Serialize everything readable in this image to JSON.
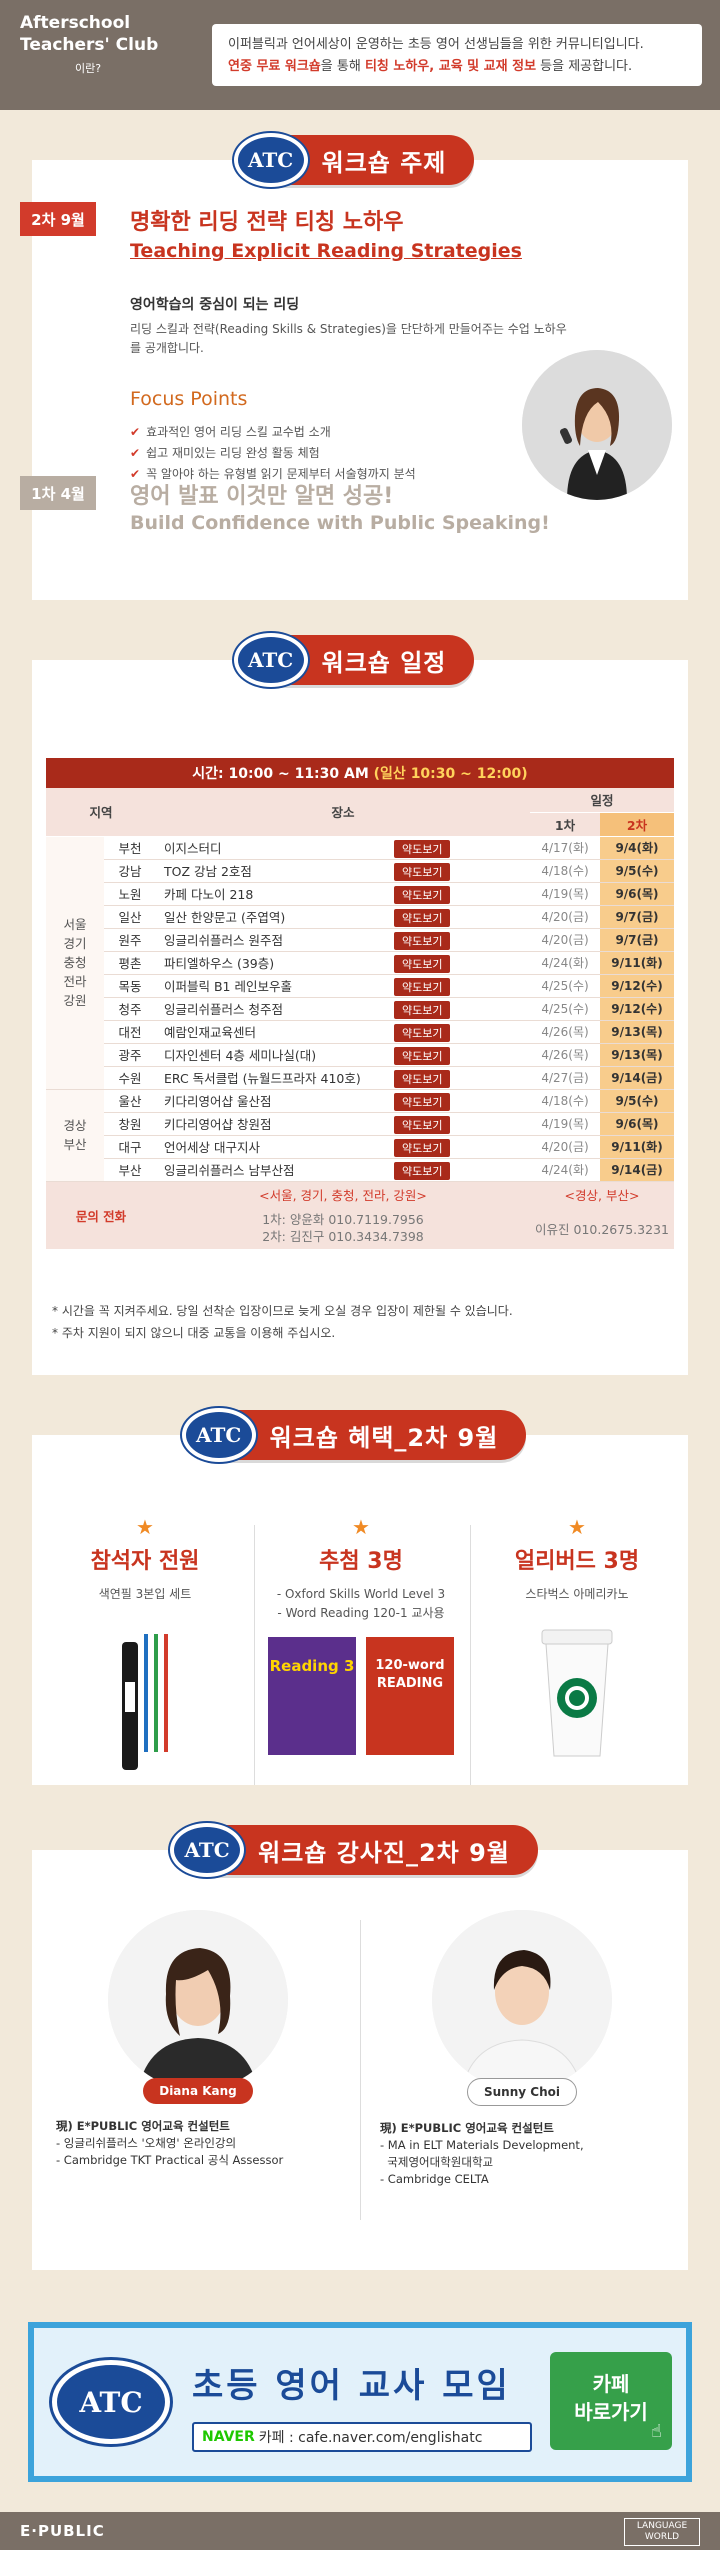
{
  "header": {
    "brand_line1": "Afterschool",
    "brand_line2": "Teachers' Club",
    "brand_sub": "이란?",
    "desc_line1": "이퍼블릭과 언어세상이 운영하는 초등 영어 선생님들을 위한 커뮤니티입니다.",
    "desc_line2_a": "연중 무료 워크숍",
    "desc_line2_b": "을 통해 ",
    "desc_line2_c": "티칭 노하우, 교육 및 교재 정보",
    "desc_line2_d": " 등을 제공합니다."
  },
  "atc_logo": "ATC",
  "topic": {
    "title": "워크숍 주제",
    "second": {
      "tag": "2차 9월",
      "title_ko": "명확한 리딩 전략 티칭 노하우",
      "title_en": "Teaching Explicit Reading Strategies",
      "core_title": "영어학습의 중심이 되는 리딩",
      "core_desc": "리딩 스킬과 전략(Reading Skills & Strategies)을 단단하게 만들어주는 수업 노하우를 공개합니다.",
      "focus_title": "Focus Points",
      "focus_points": [
        "효과적인 영어 리딩 스킬 교수법 소개",
        "쉽고 재미있는 리딩 완성 활동 체험",
        "꼭 알아야 하는 유형별 읽기 문제부터 서술형까지 분석"
      ]
    },
    "first": {
      "tag": "1차 4월",
      "title_ko": "영어 발표 이것만 알면 성공!",
      "title_en": "Build Confidence with Public Speaking!"
    }
  },
  "schedule": {
    "title": "워크숍 일정",
    "time_a": "시간: 10:00 ~ 11:30 AM ",
    "time_b": "(일산 10:30 ~ 12:00)",
    "col_region": "지역",
    "col_venue": "장소",
    "col_dates": "일정",
    "col_first": "1차",
    "col_second": "2차",
    "map_label": "약도보기",
    "group1_label": "서울\n경기\n충청\n전라\n강원",
    "group1": [
      {
        "city": "부천",
        "venue": "이지스터디",
        "d1": "4/17(화)",
        "d2": "9/4(화)"
      },
      {
        "city": "강남",
        "venue": "TOZ 강남 2호점",
        "d1": "4/18(수)",
        "d2": "9/5(수)"
      },
      {
        "city": "노원",
        "venue": "카페 다노이 218",
        "d1": "4/19(목)",
        "d2": "9/6(목)"
      },
      {
        "city": "일산",
        "venue": "일산 한양문고 (주엽역)",
        "d1": "4/20(금)",
        "d2": "9/7(금)"
      },
      {
        "city": "원주",
        "venue": "잉글리쉬플러스 원주점",
        "d1": "4/20(금)",
        "d2": "9/7(금)"
      },
      {
        "city": "평촌",
        "venue": "파티엘하우스 (39층)",
        "d1": "4/24(화)",
        "d2": "9/11(화)"
      },
      {
        "city": "목동",
        "venue": "이퍼블릭 B1 레인보우홀",
        "d1": "4/25(수)",
        "d2": "9/12(수)"
      },
      {
        "city": "청주",
        "venue": "잉글리쉬플러스 청주점",
        "d1": "4/25(수)",
        "d2": "9/12(수)"
      },
      {
        "city": "대전",
        "venue": "예람인재교육센터",
        "d1": "4/26(목)",
        "d2": "9/13(목)"
      },
      {
        "city": "광주",
        "venue": "디자인센터 4층 세미나실(대)",
        "d1": "4/26(목)",
        "d2": "9/13(목)"
      },
      {
        "city": "수원",
        "venue": "ERC 독서클럽 (뉴월드프라자 410호)",
        "d1": "4/27(금)",
        "d2": "9/14(금)"
      }
    ],
    "group2_label": "경상\n부산",
    "group2": [
      {
        "city": "울산",
        "venue": "키다리영어샵 울산점",
        "d1": "4/18(수)",
        "d2": "9/5(수)"
      },
      {
        "city": "창원",
        "venue": "키다리영어샵 창원점",
        "d1": "4/19(목)",
        "d2": "9/6(목)"
      },
      {
        "city": "대구",
        "venue": "언어세상 대구지사",
        "d1": "4/20(금)",
        "d2": "9/11(화)"
      },
      {
        "city": "부산",
        "venue": "잉글리쉬플러스 남부산점",
        "d1": "4/24(화)",
        "d2": "9/14(금)"
      }
    ],
    "inquiry_label": "문의 전화",
    "inquiry_region_a": "<서울, 경기, 충청, 전라, 강원>",
    "inquiry_region_b": "<경상, 부산>",
    "inquiry_contact_a1": "1차: 양윤화 010.7119.7956",
    "inquiry_contact_a2": "2차: 김진구 010.3434.7398",
    "inquiry_contact_b": "이유진 010.2675.3231",
    "notes": [
      "* 시간을 꼭 지켜주세요. 당일 선착순 입장이므로 늦게 오실 경우 입장이 제한될 수 있습니다.",
      "* 주차 지원이 되지 않으니 대중 교통을 이용해 주십시오."
    ]
  },
  "benefits": {
    "title": "워크숍 혜택_2차 9월",
    "items": [
      {
        "title": "참석자 전원",
        "desc1": "색연필 3본입 세트",
        "desc2": ""
      },
      {
        "title": "추첨 3명",
        "desc1": "- Oxford Skills World Level 3",
        "desc2": "- Word Reading 120-1 교사용"
      },
      {
        "title": "얼리버드 3명",
        "desc1": "스타벅스 아메리카노",
        "desc2": ""
      }
    ],
    "book1_title": "Reading 3",
    "book2_title": "120-word READING"
  },
  "instructors": {
    "title": "워크숍 강사진_2차 9월",
    "people": [
      {
        "name": "Diana Kang",
        "role": "現) E*PUBLIC 영어교육 컨설턴트",
        "lines": [
          "- 잉글리쉬플러스 '오채영' 온라인강의",
          "- Cambridge TKT Practical 공식 Assessor"
        ]
      },
      {
        "name": "Sunny Choi",
        "role": "現) E*PUBLIC 영어교육 컨설턴트",
        "lines": [
          "- MA in ELT Materials Development,",
          "  국제영어대학원대학교",
          "- Cambridge CELTA"
        ]
      }
    ]
  },
  "banner": {
    "title": "초등 영어 교사 모임",
    "naver": "NAVER",
    "url": "카페 : cafe.naver.com/englishatc",
    "button_line1": "카페",
    "button_line2": "바로가기"
  },
  "footer": {
    "left": "E·PUBLIC",
    "right": "LANGUAGE WORLD"
  },
  "colors": {
    "brand_red": "#c8341f",
    "navy": "#1b4b98",
    "footer": "#7a6f66",
    "bg": "#f2e9da"
  }
}
